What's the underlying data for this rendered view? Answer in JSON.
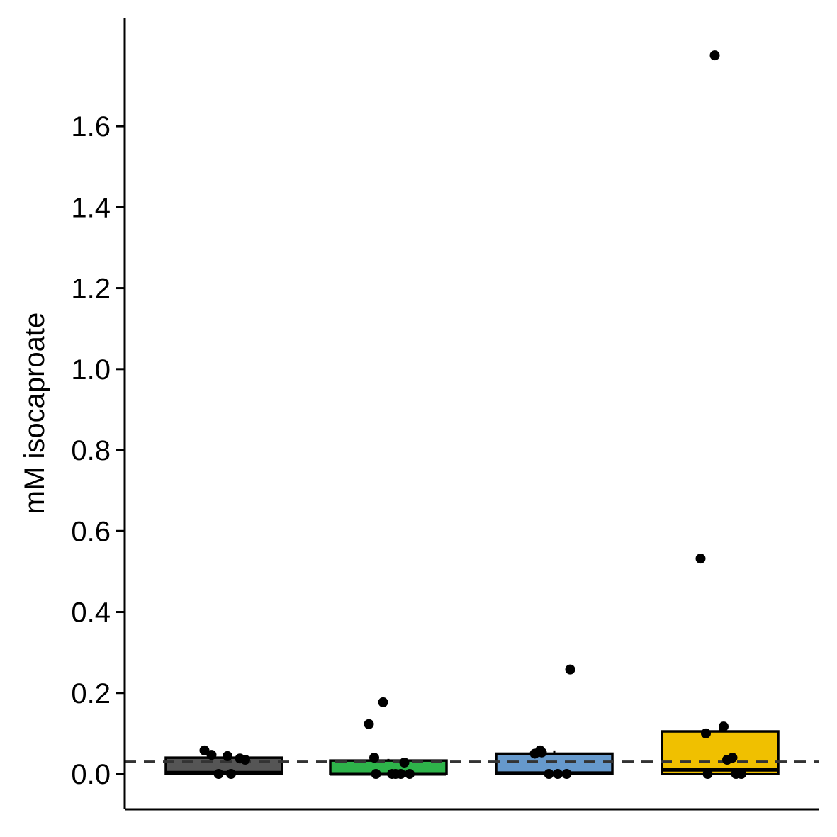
{
  "chart_data": {
    "type": "box",
    "title": "",
    "xlabel": "",
    "ylabel": "mM isocaproate",
    "ylim": [
      -0.085,
      1.84
    ],
    "yticks": [
      0.0,
      0.2,
      0.4,
      0.6,
      0.8,
      1.0,
      1.2,
      1.4,
      1.6
    ],
    "ytick_labels": [
      "0.0",
      "0.2",
      "0.4",
      "0.6",
      "0.8",
      "1.0",
      "1.2",
      "1.4",
      "1.6"
    ],
    "reference_line": 0.03,
    "groups": [
      {
        "color": "#555555",
        "box": {
          "q1": 0.0,
          "median": 0.003,
          "q3": 0.04,
          "whisker_low": 0.0,
          "whisker_high": 0.05
        },
        "points": [
          0.058,
          0.047,
          0.044,
          0.038,
          0.035,
          0.0,
          0.0
        ]
      },
      {
        "color": "#2eb34a",
        "box": {
          "q1": 0.0,
          "median": 0.0,
          "q3": 0.033,
          "whisker_low": 0.0,
          "whisker_high": 0.037
        },
        "points": [
          0.028,
          0.0,
          0.0,
          0.177,
          0.0,
          0.04,
          0.123,
          0.0,
          0.0
        ]
      },
      {
        "color": "#6699cc",
        "box": {
          "q1": 0.0,
          "median": 0.002,
          "q3": 0.05,
          "whisker_low": 0.0,
          "whisker_high": 0.058
        },
        "points": [
          0.0,
          0.0,
          0.058,
          0.05,
          0.053,
          0.0,
          0.258
        ]
      },
      {
        "color": "#f0c000",
        "box": {
          "q1": 0.0,
          "median": 0.01,
          "q3": 0.105,
          "whisker_low": 0.0,
          "whisker_high": 0.12
        },
        "points": [
          0.532,
          0.0,
          0.117,
          0.0,
          0.0,
          0.035,
          1.775,
          0.04,
          0.1
        ]
      }
    ]
  }
}
